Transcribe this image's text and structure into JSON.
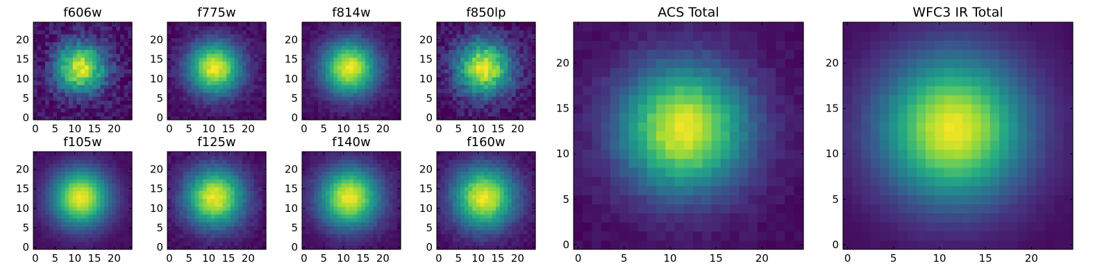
{
  "chart_data": [
    {
      "type": "heatmap",
      "title": "f606w",
      "size": 25,
      "center": [
        11.5,
        12.8
      ],
      "sigma": 3.3,
      "noise": 0.11,
      "xticks": [
        0,
        5,
        10,
        15,
        20
      ],
      "yticks": [
        0,
        5,
        10,
        15,
        20
      ],
      "xlim": [
        0,
        25
      ],
      "ylim": [
        0,
        25
      ],
      "colormap": "viridis"
    },
    {
      "type": "heatmap",
      "title": "f775w",
      "size": 25,
      "center": [
        11.5,
        12.8
      ],
      "sigma": 3.5,
      "noise": 0.05,
      "xticks": [
        0,
        5,
        10,
        15,
        20
      ],
      "yticks": [
        0,
        5,
        10,
        15,
        20
      ],
      "xlim": [
        0,
        25
      ],
      "ylim": [
        0,
        25
      ],
      "colormap": "viridis"
    },
    {
      "type": "heatmap",
      "title": "f814w",
      "size": 25,
      "center": [
        11.5,
        12.8
      ],
      "sigma": 3.6,
      "noise": 0.04,
      "xticks": [
        0,
        5,
        10,
        15,
        20
      ],
      "yticks": [
        0,
        5,
        10,
        15,
        20
      ],
      "xlim": [
        0,
        25
      ],
      "ylim": [
        0,
        25
      ],
      "colormap": "viridis"
    },
    {
      "type": "heatmap",
      "title": "f850lp",
      "size": 25,
      "center": [
        11.5,
        12.8
      ],
      "sigma": 3.6,
      "noise": 0.09,
      "xticks": [
        0,
        5,
        10,
        15,
        20
      ],
      "yticks": [
        0,
        5,
        10,
        15,
        20
      ],
      "xlim": [
        0,
        25
      ],
      "ylim": [
        0,
        25
      ],
      "colormap": "viridis"
    },
    {
      "type": "heatmap",
      "title": "f105w",
      "size": 25,
      "center": [
        11.5,
        12.8
      ],
      "sigma": 3.8,
      "noise": 0.02,
      "xticks": [
        0,
        5,
        10,
        15,
        20
      ],
      "yticks": [
        0,
        5,
        10,
        15,
        20
      ],
      "xlim": [
        0,
        25
      ],
      "ylim": [
        0,
        25
      ],
      "colormap": "viridis"
    },
    {
      "type": "heatmap",
      "title": "f125w",
      "size": 25,
      "center": [
        11.5,
        12.8
      ],
      "sigma": 3.9,
      "noise": 0.04,
      "xticks": [
        0,
        5,
        10,
        15,
        20
      ],
      "yticks": [
        0,
        5,
        10,
        15,
        20
      ],
      "xlim": [
        0,
        25
      ],
      "ylim": [
        0,
        25
      ],
      "colormap": "viridis"
    },
    {
      "type": "heatmap",
      "title": "f140w",
      "size": 25,
      "center": [
        11.5,
        12.8
      ],
      "sigma": 4.0,
      "noise": 0.03,
      "xticks": [
        0,
        5,
        10,
        15,
        20
      ],
      "yticks": [
        0,
        5,
        10,
        15,
        20
      ],
      "xlim": [
        0,
        25
      ],
      "ylim": [
        0,
        25
      ],
      "colormap": "viridis"
    },
    {
      "type": "heatmap",
      "title": "f160w",
      "size": 25,
      "center": [
        11.5,
        12.8
      ],
      "sigma": 4.1,
      "noise": 0.04,
      "xticks": [
        0,
        5,
        10,
        15,
        20
      ],
      "yticks": [
        0,
        5,
        10,
        15,
        20
      ],
      "xlim": [
        0,
        25
      ],
      "ylim": [
        0,
        25
      ],
      "colormap": "viridis"
    },
    {
      "type": "heatmap",
      "title": "ACS Total",
      "size": 25,
      "center": [
        11.5,
        12.8
      ],
      "sigma": 3.6,
      "noise": 0.03,
      "xticks": [
        0,
        5,
        10,
        15,
        20
      ],
      "yticks": [
        0,
        5,
        10,
        15,
        20
      ],
      "xlim": [
        0,
        25
      ],
      "ylim": [
        0,
        25
      ],
      "colormap": "viridis"
    },
    {
      "type": "heatmap",
      "title": "WFC3 IR Total",
      "size": 25,
      "center": [
        11.5,
        12.8
      ],
      "sigma": 4.1,
      "noise": 0.01,
      "xticks": [
        0,
        5,
        10,
        15,
        20
      ],
      "yticks": [
        0,
        5,
        10,
        15,
        20
      ],
      "xlim": [
        0,
        25
      ],
      "ylim": [
        0,
        25
      ],
      "colormap": "viridis"
    }
  ]
}
